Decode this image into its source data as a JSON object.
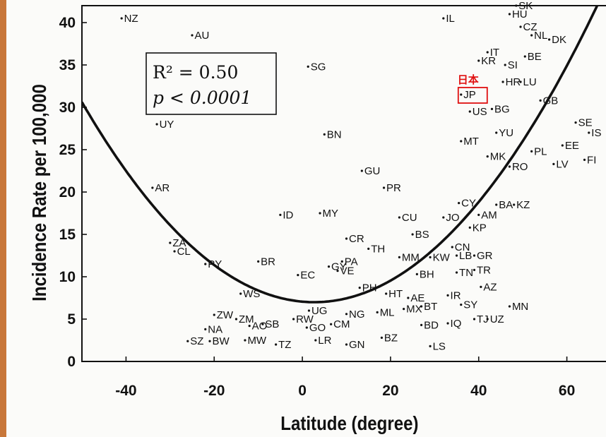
{
  "chart_data": {
    "type": "scatter",
    "xlabel": "Latitude (degree)",
    "ylabel": "Incidence Rate per 100,000",
    "xlim": [
      -50,
      70
    ],
    "ylim": [
      0,
      42
    ],
    "x_ticks": [
      -40,
      -20,
      0,
      20,
      40,
      60
    ],
    "y_ticks": [
      0,
      5,
      10,
      15,
      20,
      25,
      30,
      35,
      40
    ],
    "stats": {
      "r2": "R² = 0.50",
      "p": "p < 0.0001"
    },
    "fit_curve": {
      "type": "quadratic",
      "vertex_x": 2.7,
      "vertex_y": 7.0,
      "a": 0.0085
    },
    "annotation": {
      "text": "日本",
      "target": "JP",
      "color": "#e01010"
    },
    "points": [
      {
        "label": "NZ",
        "x": -41,
        "y": 40.5
      },
      {
        "label": "AU",
        "x": -25,
        "y": 38.5
      },
      {
        "label": "UY",
        "x": -33,
        "y": 28
      },
      {
        "label": "AR",
        "x": -34,
        "y": 20.5
      },
      {
        "label": "ZA",
        "x": -30,
        "y": 14
      },
      {
        "label": "CL",
        "x": -29,
        "y": 13
      },
      {
        "label": "PY",
        "x": -22,
        "y": 11.5
      },
      {
        "label": "WS",
        "x": -14,
        "y": 8
      },
      {
        "label": "ZW",
        "x": -20,
        "y": 5.5
      },
      {
        "label": "ZM",
        "x": -15,
        "y": 5
      },
      {
        "label": "NA",
        "x": -22,
        "y": 3.8
      },
      {
        "label": "SZ",
        "x": -26,
        "y": 2.4
      },
      {
        "label": "BW",
        "x": -21,
        "y": 2.4
      },
      {
        "label": "AO",
        "x": -12,
        "y": 4.2
      },
      {
        "label": "MW",
        "x": -13,
        "y": 2.5
      },
      {
        "label": "TZ",
        "x": -6,
        "y": 2
      },
      {
        "label": "SB",
        "x": -9,
        "y": 4.4
      },
      {
        "label": "RW",
        "x": -2,
        "y": 5
      },
      {
        "label": "BR",
        "x": -10,
        "y": 11.8
      },
      {
        "label": "ID",
        "x": -5,
        "y": 17.3
      },
      {
        "label": "EC",
        "x": -1,
        "y": 10.2
      },
      {
        "label": "SG",
        "x": 1.3,
        "y": 34.8
      },
      {
        "label": "BN",
        "x": 5,
        "y": 26.8
      },
      {
        "label": "MY",
        "x": 4,
        "y": 17.5
      },
      {
        "label": "GY",
        "x": 6,
        "y": 11.2
      },
      {
        "label": "PA",
        "x": 9,
        "y": 11.8
      },
      {
        "label": "VE",
        "x": 8,
        "y": 10.7
      },
      {
        "label": "UG",
        "x": 1.5,
        "y": 6
      },
      {
        "label": "GO",
        "x": 1,
        "y": 4
      },
      {
        "label": "CM",
        "x": 6.5,
        "y": 4.4
      },
      {
        "label": "LR",
        "x": 3,
        "y": 2.5
      },
      {
        "label": "NG",
        "x": 10,
        "y": 5.6
      },
      {
        "label": "GN",
        "x": 10,
        "y": 2
      },
      {
        "label": "PH",
        "x": 13,
        "y": 8.7
      },
      {
        "label": "CR",
        "x": 10,
        "y": 14.5
      },
      {
        "label": "TH",
        "x": 15,
        "y": 13.3
      },
      {
        "label": "GU",
        "x": 13.5,
        "y": 22.5
      },
      {
        "label": "PR",
        "x": 18.5,
        "y": 20.5
      },
      {
        "label": "HT",
        "x": 19,
        "y": 8
      },
      {
        "label": "ML",
        "x": 17,
        "y": 5.8
      },
      {
        "label": "BZ",
        "x": 18,
        "y": 2.8
      },
      {
        "label": "CU",
        "x": 22,
        "y": 17
      },
      {
        "label": "MX",
        "x": 23,
        "y": 6.2
      },
      {
        "label": "MM",
        "x": 22,
        "y": 12.3
      },
      {
        "label": "BS",
        "x": 25,
        "y": 15
      },
      {
        "label": "AE",
        "x": 24,
        "y": 7.5
      },
      {
        "label": "BH",
        "x": 26,
        "y": 10.3
      },
      {
        "label": "BT",
        "x": 27,
        "y": 6.5
      },
      {
        "label": "BD",
        "x": 27,
        "y": 4.3
      },
      {
        "label": "LS",
        "x": 29,
        "y": 1.8
      },
      {
        "label": "KW",
        "x": 29,
        "y": 12.3
      },
      {
        "label": "JO",
        "x": 32,
        "y": 17
      },
      {
        "label": "IL",
        "x": 32,
        "y": 40.5
      },
      {
        "label": "IR",
        "x": 33,
        "y": 7.8
      },
      {
        "label": "SY",
        "x": 36,
        "y": 6.7
      },
      {
        "label": "IQ",
        "x": 33,
        "y": 4.5
      },
      {
        "label": "TN",
        "x": 35,
        "y": 10.5
      },
      {
        "label": "CN",
        "x": 34,
        "y": 13.5
      },
      {
        "label": "LB",
        "x": 35,
        "y": 12.5
      },
      {
        "label": "CY",
        "x": 35.5,
        "y": 18.7
      },
      {
        "label": "KP",
        "x": 38,
        "y": 15.8
      },
      {
        "label": "AM",
        "x": 40,
        "y": 17.3
      },
      {
        "label": "GR",
        "x": 39,
        "y": 12.5
      },
      {
        "label": "TR",
        "x": 39,
        "y": 10.8
      },
      {
        "label": "TJ",
        "x": 39,
        "y": 5
      },
      {
        "label": "UZ",
        "x": 42,
        "y": 5
      },
      {
        "label": "AZ",
        "x": 40.5,
        "y": 8.8
      },
      {
        "label": "MN",
        "x": 47,
        "y": 6.5
      },
      {
        "label": "BA",
        "x": 44,
        "y": 18.5
      },
      {
        "label": "KZ",
        "x": 48,
        "y": 18.5
      },
      {
        "label": "MT",
        "x": 36,
        "y": 26
      },
      {
        "label": "MK",
        "x": 42,
        "y": 24.2
      },
      {
        "label": "YU",
        "x": 44,
        "y": 27
      },
      {
        "label": "RO",
        "x": 47,
        "y": 23
      },
      {
        "label": "US",
        "x": 38,
        "y": 29.5
      },
      {
        "label": "BG",
        "x": 43,
        "y": 29.8
      },
      {
        "label": "JP",
        "x": 36,
        "y": 31.5
      },
      {
        "label": "HR",
        "x": 45.5,
        "y": 33
      },
      {
        "label": "LU",
        "x": 49.5,
        "y": 33
      },
      {
        "label": "KR",
        "x": 40,
        "y": 35.5
      },
      {
        "label": "IT",
        "x": 42,
        "y": 36.5
      },
      {
        "label": "SI",
        "x": 46,
        "y": 35
      },
      {
        "label": "BE",
        "x": 50.5,
        "y": 36
      },
      {
        "label": "HU",
        "x": 47,
        "y": 41
      },
      {
        "label": "SK",
        "x": 48.5,
        "y": 42
      },
      {
        "label": "CZ",
        "x": 49.5,
        "y": 39.5
      },
      {
        "label": "NL",
        "x": 52,
        "y": 38.5
      },
      {
        "label": "DK",
        "x": 56,
        "y": 38
      },
      {
        "label": "GB",
        "x": 54,
        "y": 30.8
      },
      {
        "label": "PL",
        "x": 52,
        "y": 24.8
      },
      {
        "label": "LV",
        "x": 57,
        "y": 23.3
      },
      {
        "label": "EE",
        "x": 59,
        "y": 25.5
      },
      {
        "label": "SE",
        "x": 62,
        "y": 28.2
      },
      {
        "label": "IS",
        "x": 65,
        "y": 27
      },
      {
        "label": "FI",
        "x": 64,
        "y": 23.8
      }
    ]
  }
}
